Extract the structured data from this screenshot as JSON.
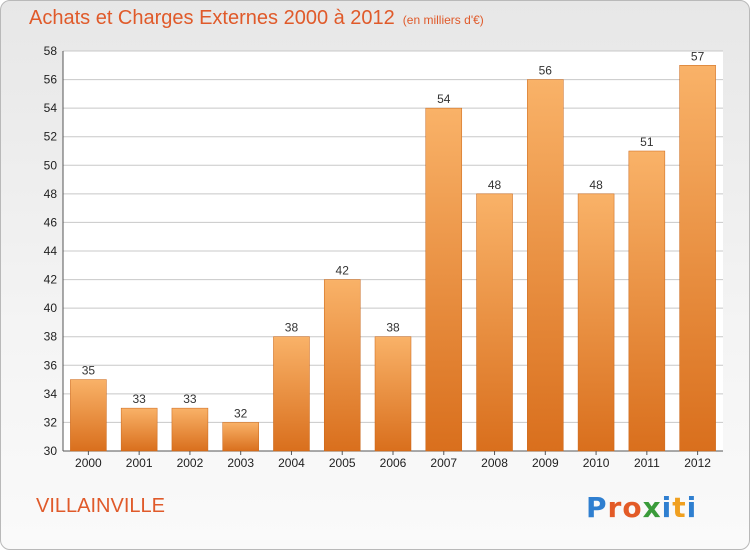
{
  "header": {
    "title": "Achats et Charges Externes 2000 à 2012",
    "unit": "(en milliers d'€)"
  },
  "place": "VILLAINVILLE",
  "logo": {
    "letters": [
      "P",
      "r",
      "o",
      "x",
      "i",
      "t",
      "i"
    ],
    "colors": [
      "#2f7fd0",
      "#e35b27",
      "#e35b27",
      "#3a9b3a",
      "#2f7fd0",
      "#f0a020",
      "#2f7fd0"
    ]
  },
  "colors": {
    "bar_light": "#f9b268",
    "bar_dark": "#d96f1d",
    "grid": "#c8c8c8",
    "text_accent": "#e05a2a"
  },
  "chart_data": {
    "type": "bar",
    "title": "Achats et Charges Externes 2000 à 2012",
    "subtitle": "(en milliers d'€)",
    "categories": [
      "2000",
      "2001",
      "2002",
      "2003",
      "2004",
      "2005",
      "2006",
      "2007",
      "2008",
      "2009",
      "2010",
      "2011",
      "2012"
    ],
    "values": [
      35,
      33,
      33,
      32,
      38,
      42,
      38,
      54,
      48,
      56,
      48,
      51,
      57
    ],
    "ylim": [
      30,
      58
    ],
    "yticks": [
      30,
      32,
      34,
      36,
      38,
      40,
      42,
      44,
      46,
      48,
      50,
      52,
      54,
      56,
      58
    ],
    "grid": true,
    "xlabel": "",
    "ylabel": ""
  }
}
